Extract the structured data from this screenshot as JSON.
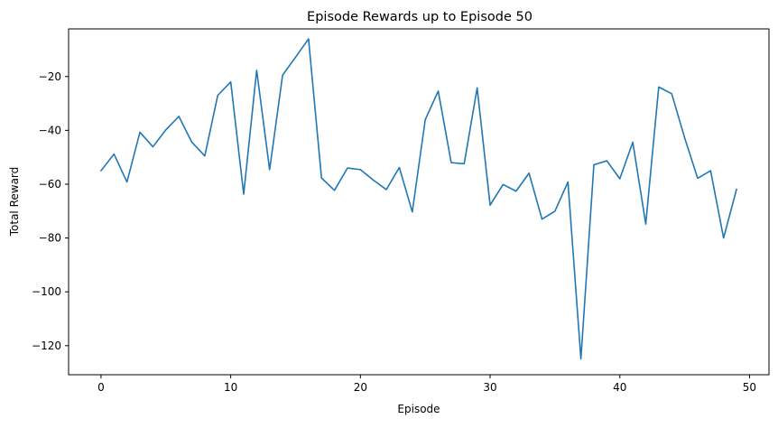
{
  "chart_data": {
    "type": "line",
    "title": "Episode Rewards up to Episode 50",
    "xlabel": "Episode",
    "ylabel": "Total Reward",
    "xlim": [
      -2.5,
      51.5
    ],
    "ylim": [
      -130.8,
      -2.3
    ],
    "x_ticks": [
      0,
      10,
      20,
      30,
      40,
      50
    ],
    "y_ticks": [
      -120,
      -100,
      -80,
      -60,
      -40,
      -20
    ],
    "x_tick_labels": [
      "0",
      "10",
      "20",
      "30",
      "40",
      "50"
    ],
    "y_tick_labels": [
      "−120",
      "−100",
      "−80",
      "−60",
      "−40",
      "−20"
    ],
    "grid": false,
    "legend": "none",
    "line_color": "#1f77b4",
    "series": [
      {
        "x": [
          0,
          1,
          2,
          3,
          4,
          5,
          6,
          7,
          8,
          9,
          10,
          11,
          12,
          13,
          14,
          15,
          16,
          17,
          18,
          19,
          20,
          21,
          22,
          23,
          24,
          25,
          26,
          27,
          28,
          29,
          30,
          31,
          32,
          33,
          34,
          35,
          36,
          37,
          38,
          39,
          40,
          41,
          42,
          43,
          44,
          45,
          46,
          47,
          48,
          49
        ],
        "values": [
          -55.0,
          -48.8,
          -59.2,
          -40.7,
          -46.1,
          -39.8,
          -34.8,
          -44.4,
          -49.5,
          -27.0,
          -22.0,
          -63.7,
          -17.7,
          -54.6,
          -19.5,
          -12.8,
          -6.0,
          -57.7,
          -62.3,
          -54.0,
          -54.6,
          -58.5,
          -62.0,
          -53.8,
          -70.3,
          -36.0,
          -25.4,
          -52.0,
          -52.4,
          -24.2,
          -67.8,
          -60.1,
          -62.6,
          -55.9,
          -73.0,
          -70.0,
          -59.2,
          -124.9,
          -52.8,
          -51.3,
          -58.0,
          -44.4,
          -74.8,
          -23.9,
          -26.4,
          -42.8,
          -57.8,
          -55.0,
          -80.0,
          -61.9
        ]
      }
    ]
  }
}
